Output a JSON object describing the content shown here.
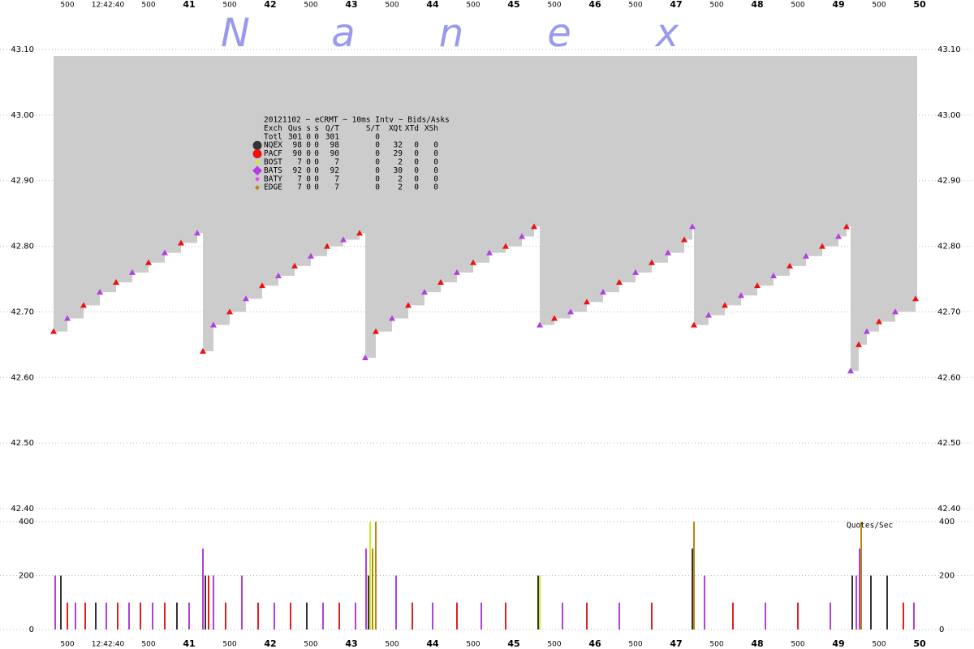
{
  "chart_data": {
    "type": "nbbo",
    "watermark": [
      "N",
      "a",
      "n",
      "e",
      "x"
    ],
    "xlim": [
      39.17,
      50.17
    ],
    "xticks": [
      {
        "value": 39.5,
        "label": "500"
      },
      {
        "value": 40,
        "label": "12:42:40"
      },
      {
        "value": 40.5,
        "label": "500"
      },
      41,
      {
        "value": 41.5,
        "label": "500"
      },
      42,
      {
        "value": 42.5,
        "label": "500"
      },
      43,
      {
        "value": 43.5,
        "label": "500"
      },
      44,
      {
        "value": 44.5,
        "label": "500"
      },
      45,
      {
        "value": 45.5,
        "label": "500"
      },
      46,
      {
        "value": 46.5,
        "label": "500"
      },
      47,
      {
        "value": 47.5,
        "label": "500"
      },
      48,
      {
        "value": 48.5,
        "label": "500"
      },
      49,
      {
        "value": 49.5,
        "label": "500"
      },
      50
    ],
    "ylim": [
      42.4,
      43.1
    ],
    "yticks": [
      {
        "value": 42.4,
        "label": "42.40"
      },
      {
        "value": 42.5,
        "label": "42.50"
      },
      {
        "value": 42.6,
        "label": "42.60"
      },
      {
        "value": 42.7,
        "label": "42.70"
      },
      {
        "value": 42.8,
        "label": "42.80"
      },
      {
        "value": 42.9,
        "label": "42.90"
      },
      {
        "value": 43.0,
        "label": "43.00"
      },
      {
        "value": 43.1,
        "label": "43.10"
      }
    ],
    "grid": true,
    "spread_top": 43.09,
    "spread_color": "#cccccc",
    "ask_colors": [
      "#ee1111",
      "#b040e0"
    ],
    "x": [
      39.33,
      39.5,
      39.7,
      39.9,
      40.1,
      40.3,
      40.5,
      40.7,
      40.9,
      41.1,
      41.17,
      41.3,
      41.5,
      41.7,
      41.9,
      42.1,
      42.3,
      42.5,
      42.7,
      42.9,
      43.1,
      43.17,
      43.3,
      43.5,
      43.7,
      43.9,
      44.1,
      44.3,
      44.5,
      44.7,
      44.9,
      45.1,
      45.25,
      45.32,
      45.5,
      45.7,
      45.9,
      46.1,
      46.3,
      46.5,
      46.7,
      46.9,
      47.1,
      47.2,
      47.22,
      47.4,
      47.6,
      47.8,
      48.0,
      48.2,
      48.4,
      48.6,
      48.8,
      49.0,
      49.1,
      49.15,
      49.25,
      49.35,
      49.5,
      49.7,
      49.95
    ],
    "values": [
      42.67,
      42.69,
      42.71,
      42.73,
      42.745,
      42.76,
      42.775,
      42.79,
      42.805,
      42.82,
      42.64,
      42.68,
      42.7,
      42.72,
      42.74,
      42.755,
      42.77,
      42.785,
      42.8,
      42.81,
      42.82,
      42.63,
      42.67,
      42.69,
      42.71,
      42.73,
      42.745,
      42.76,
      42.775,
      42.79,
      42.8,
      42.815,
      42.83,
      42.68,
      42.69,
      42.7,
      42.715,
      42.73,
      42.745,
      42.76,
      42.775,
      42.79,
      42.81,
      42.83,
      42.68,
      42.695,
      42.71,
      42.725,
      42.74,
      42.755,
      42.77,
      42.785,
      42.8,
      42.815,
      42.83,
      42.61,
      42.65,
      42.67,
      42.685,
      42.7,
      42.72
    ],
    "table": {
      "title": "20121102 ~ eCRMT ~ 10ms Intv ~ Bids/Asks",
      "header": [
        "Exch",
        "Qus",
        "s",
        "s",
        "Q/T",
        "S/T",
        "XQt",
        "XTd",
        "XSh"
      ],
      "total": [
        "Totl",
        301,
        0,
        0,
        301,
        0
      ],
      "exchanges": [
        {
          "name": "NQEX",
          "color": "#333333",
          "shape": "circle",
          "values": [
            98,
            0,
            0,
            98,
            0,
            32,
            0,
            0
          ]
        },
        {
          "name": "PACF",
          "color": "#ee1111",
          "shape": "circle",
          "values": [
            90,
            0,
            0,
            90,
            0,
            29,
            0,
            0
          ]
        },
        {
          "name": "BOST",
          "color": "#ccee22",
          "shape": "diamond-small",
          "values": [
            7,
            0,
            0,
            7,
            0,
            2,
            0,
            0
          ]
        },
        {
          "name": "BATS",
          "color": "#b040e0",
          "shape": "diamond",
          "values": [
            92,
            0,
            0,
            92,
            0,
            30,
            0,
            0
          ]
        },
        {
          "name": "BATY",
          "color": "#ee44ee",
          "shape": "diamond-small",
          "values": [
            7,
            0,
            0,
            7,
            0,
            2,
            0,
            0
          ]
        },
        {
          "name": "EDGE",
          "color": "#b8860b",
          "shape": "diamond-small",
          "values": [
            7,
            0,
            0,
            7,
            0,
            2,
            0,
            0
          ]
        }
      ]
    },
    "rate_label": "Quotes/Sec",
    "rate_ylim": [
      0,
      400
    ],
    "rate_yticks": [
      0,
      200,
      400
    ],
    "rate_x": [
      39.35,
      39.42,
      39.5,
      39.6,
      39.72,
      39.85,
      39.98,
      40.12,
      40.26,
      40.4,
      40.55,
      40.7,
      40.85,
      41.0,
      41.17,
      41.2,
      41.24,
      41.3,
      41.45,
      41.65,
      41.85,
      42.05,
      42.25,
      42.45,
      42.65,
      42.85,
      43.05,
      43.18,
      43.21,
      43.23,
      43.26,
      43.3,
      43.55,
      43.75,
      44.0,
      44.3,
      44.6,
      44.9,
      45.3,
      45.32,
      45.6,
      45.9,
      46.3,
      46.7,
      47.2,
      47.22,
      47.35,
      47.7,
      48.1,
      48.5,
      48.9,
      49.17,
      49.22,
      49.26,
      49.28,
      49.4,
      49.6,
      49.8,
      49.93
    ],
    "rate_values": [
      200,
      200,
      100,
      100,
      100,
      100,
      100,
      100,
      100,
      100,
      100,
      100,
      100,
      100,
      300,
      200,
      200,
      200,
      100,
      200,
      100,
      100,
      100,
      100,
      100,
      100,
      100,
      300,
      200,
      400,
      300,
      400,
      200,
      100,
      100,
      100,
      100,
      100,
      200,
      200,
      100,
      100,
      100,
      100,
      300,
      400,
      200,
      100,
      100,
      100,
      100,
      200,
      200,
      300,
      400,
      200,
      200,
      100,
      100
    ],
    "rate_colors": [
      "#b040e0",
      "#333333",
      "#e02020",
      "#b040e0",
      "#e02020",
      "#333333",
      "#b040e0",
      "#e02020",
      "#b040e0",
      "#e02020",
      "#b040e0",
      "#e02020",
      "#333333",
      "#b040e0",
      "#b040e0",
      "#333333",
      "#e02020",
      "#b040e0",
      "#e02020",
      "#b040e0",
      "#e02020",
      "#b040e0",
      "#e02020",
      "#333333",
      "#b040e0",
      "#e02020",
      "#b040e0",
      "#b040e0",
      "#333333",
      "#ccee22",
      "#b8860b",
      "#b8860b",
      "#b040e0",
      "#e02020",
      "#b040e0",
      "#e02020",
      "#b040e0",
      "#e02020",
      "#333333",
      "#ccee22",
      "#b040e0",
      "#e02020",
      "#b040e0",
      "#e02020",
      "#333333",
      "#b8860b",
      "#b040e0",
      "#e02020",
      "#b040e0",
      "#e02020",
      "#b040e0",
      "#333333",
      "#b040e0",
      "#b040e0",
      "#b8860b",
      "#333333",
      "#333333",
      "#e02020",
      "#b040e0"
    ]
  }
}
